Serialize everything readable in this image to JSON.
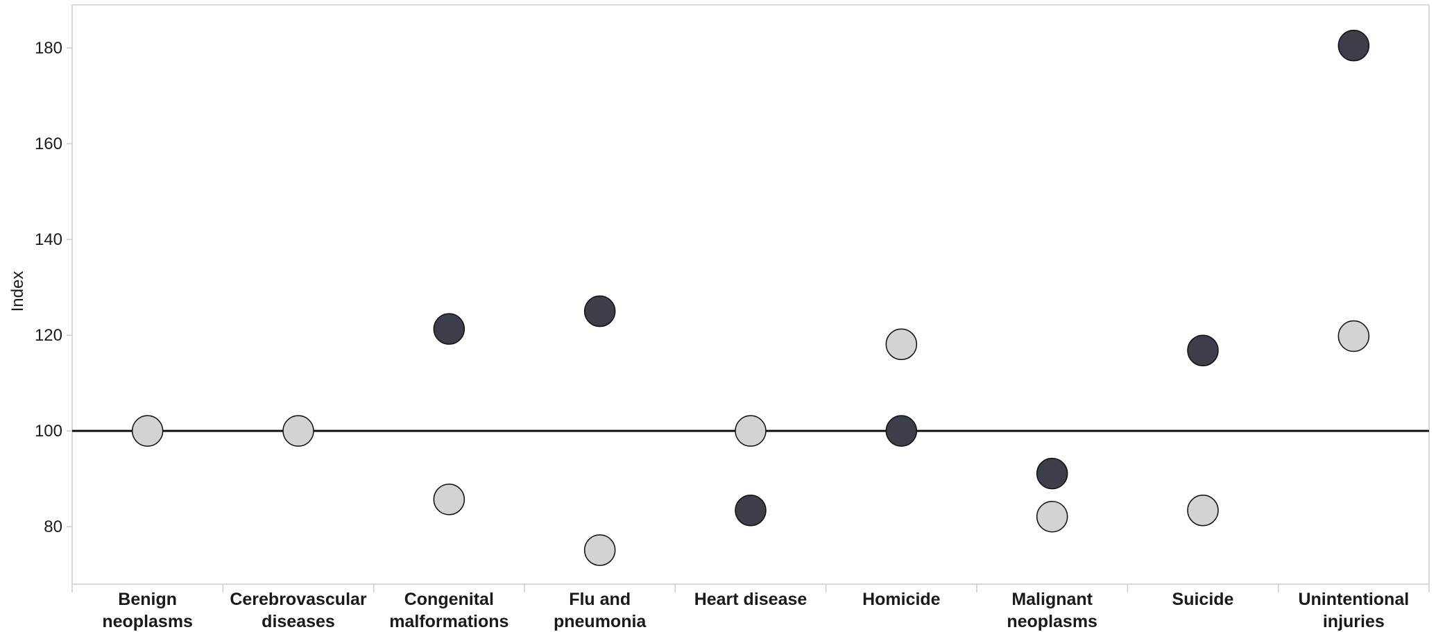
{
  "chart_data": {
    "type": "scatter",
    "title": "",
    "ylabel": "Index",
    "ylim": [
      68,
      189
    ],
    "yticks": [
      80,
      100,
      120,
      140,
      160,
      180
    ],
    "reference_line": 100,
    "grid": false,
    "categories": [
      [
        "Benign",
        "neoplasms"
      ],
      [
        "Cerebrovascular",
        "diseases"
      ],
      [
        "Congenital",
        "malformations"
      ],
      [
        "Flu and",
        "pneumonia"
      ],
      [
        "Heart disease"
      ],
      [
        "Homicide"
      ],
      [
        "Malignant",
        "neoplasms"
      ],
      [
        "Suicide"
      ],
      [
        "Unintentional",
        "injuries"
      ]
    ],
    "series": [
      {
        "color": "#d3d3d3",
        "values": [
          100,
          100,
          85.7,
          75.1,
          100,
          118.1,
          82.1,
          83.4,
          119.8
        ]
      },
      {
        "color": "#3c3f4a",
        "values": [
          null,
          null,
          121.3,
          125.0,
          83.4,
          100,
          91.1,
          116.8,
          180.5
        ]
      }
    ],
    "colors": {
      "axis": "#cccccc",
      "reference_line": "#111111",
      "marker_stroke": "#111111"
    }
  }
}
